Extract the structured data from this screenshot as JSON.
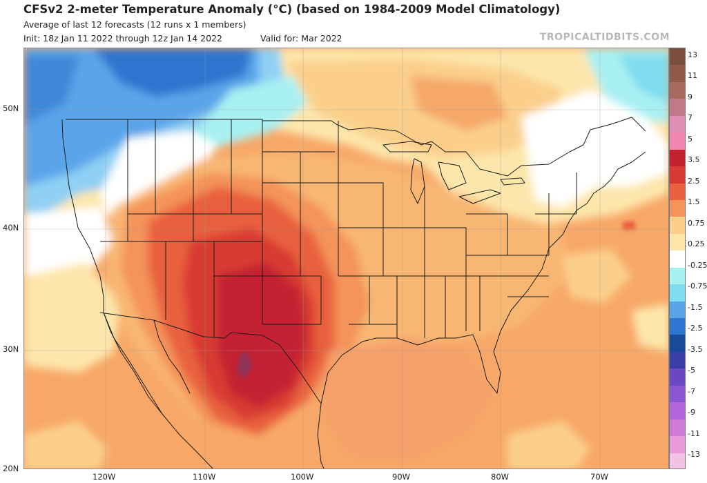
{
  "header": {
    "title": "CFSv2 2-meter Temperature Anomaly (°C) (based on 1984-2009 Model Climatology)",
    "subtitle": "Average of last 12 forecasts (12 runs x 1 members)",
    "init": "Init: 18z Jan 11 2022 through 12z Jan 14 2022",
    "valid": "Valid for: Mar 2022",
    "brand": "TROPICALTIDBITS.COM"
  },
  "map": {
    "lat_labels": [
      "50N",
      "40N",
      "30N",
      "20N"
    ],
    "lon_labels": [
      "120W",
      "110W",
      "100W",
      "90W",
      "80W",
      "70W"
    ],
    "colors": {
      "ocean_base": "#f7a868",
      "land_base": "#f8b673",
      "cold_deep": "#2f75cf",
      "cold_mid": "#5aa5ea",
      "cold_light": "#8fd0f4",
      "cyan": "#a8f0f2",
      "neutral": "#ffffff",
      "warm_pale": "#fde6ab",
      "warm_light": "#fbcf8b",
      "warm_mid": "#f4935a",
      "warm_strong": "#e8603e",
      "warm_deep": "#d83a33",
      "warm_max": "#c42230",
      "hot_core": "#8e3357",
      "border": "#1a1a1a"
    }
  },
  "colorbar": {
    "labels": [
      "13",
      "11",
      "9",
      "7",
      "5",
      "3.5",
      "2.5",
      "1.5",
      "0.75",
      "0.25",
      "-0.25",
      "-0.75",
      "-1.5",
      "-2.5",
      "-3.5",
      "-5",
      "-7",
      "-9",
      "-11",
      "-13"
    ],
    "colors": [
      "#7a4e3c",
      "#8f5a48",
      "#a66a5e",
      "#c07a8a",
      "#e08fb4",
      "#ef87ae",
      "#c42230",
      "#d83a33",
      "#e8603e",
      "#f4935a",
      "#fbcf8b",
      "#fde6ab",
      "#ffffff",
      "#a8f0f2",
      "#7fdcee",
      "#5aa5ea",
      "#2f75cf",
      "#174a99",
      "#3a3fa8",
      "#6a48c2",
      "#8a55d0",
      "#b066d8",
      "#d07ad8",
      "#e89ad8",
      "#f2c2e2"
    ]
  }
}
